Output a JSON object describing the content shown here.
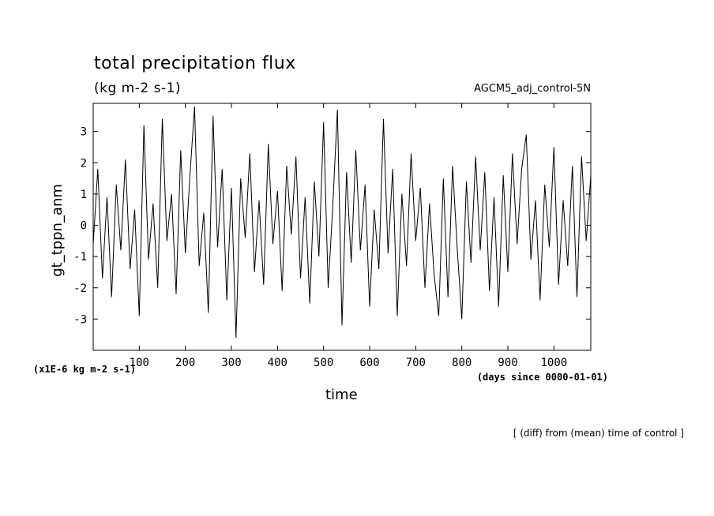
{
  "header": {
    "title": "total precipitation flux",
    "subtitle": "(kg m-2 s-1)",
    "run_label": "AGCM5_adj_control-5N"
  },
  "axes": {
    "scale_note": "(x1E-6 kg m-2 s-1)",
    "x_unit": "(days since 0000-01-01)",
    "x_label": "time",
    "y_label": "gt_tppn_anm"
  },
  "footer": {
    "note": "[ (diff) from (mean) time of control ]"
  },
  "chart_data": {
    "type": "line",
    "title": "total precipitation flux",
    "subtitle": "(kg m-2 s-1)",
    "xlabel": "time",
    "ylabel": "gt_tppn_anm",
    "x_unit": "days since 0000-01-01",
    "y_scale_note": "x1E-6 kg m-2 s-1",
    "xlim": [
      0,
      1080
    ],
    "ylim": [
      -4,
      3.9
    ],
    "x_ticks": [
      100,
      200,
      300,
      400,
      500,
      600,
      700,
      800,
      900,
      1000
    ],
    "y_ticks": [
      -3,
      -2,
      -1,
      0,
      1,
      2,
      3
    ],
    "line_color": "#000000",
    "grid": false,
    "series": [
      {
        "x": [
          0,
          10,
          20,
          30,
          40,
          50,
          60,
          70,
          80,
          90,
          100,
          110,
          120,
          130,
          140,
          150,
          160,
          170,
          180,
          190,
          200,
          210,
          220,
          230,
          240,
          250,
          260,
          270,
          280,
          290,
          300,
          310,
          320,
          330,
          340,
          350,
          360,
          370,
          380,
          390,
          400,
          410,
          420,
          430,
          440,
          450,
          460,
          470,
          480,
          490,
          500,
          510,
          520,
          530,
          540,
          550,
          560,
          570,
          580,
          590,
          600,
          610,
          620,
          630,
          640,
          650,
          660,
          670,
          680,
          690,
          700,
          710,
          720,
          730,
          740,
          750,
          760,
          770,
          780,
          790,
          800,
          810,
          820,
          830,
          840,
          850,
          860,
          870,
          880,
          890,
          900,
          910,
          920,
          930,
          940,
          950,
          960,
          970,
          980,
          990,
          1000,
          1010,
          1020,
          1030,
          1040,
          1050,
          1060,
          1070,
          1080
        ],
        "y": [
          -0.6,
          1.8,
          -1.7,
          0.9,
          -2.3,
          1.3,
          -0.8,
          2.1,
          -1.4,
          0.5,
          -2.9,
          3.2,
          -1.1,
          0.7,
          -2.0,
          3.4,
          -0.5,
          1.0,
          -2.2,
          2.4,
          -0.9,
          1.6,
          3.8,
          -1.3,
          0.4,
          -2.8,
          3.5,
          -0.7,
          1.8,
          -2.4,
          1.2,
          -3.6,
          1.5,
          -0.4,
          2.3,
          -1.5,
          0.8,
          -1.9,
          2.6,
          -0.6,
          1.1,
          -2.1,
          1.9,
          -0.3,
          2.2,
          -1.7,
          0.9,
          -2.5,
          1.4,
          -1.0,
          3.3,
          -2.0,
          0.6,
          3.7,
          -3.2,
          1.7,
          -1.2,
          2.4,
          -0.8,
          1.3,
          -2.6,
          0.5,
          -1.4,
          3.4,
          -0.9,
          1.8,
          -2.9,
          1.0,
          -1.3,
          2.3,
          -0.5,
          1.2,
          -2.0,
          0.7,
          -1.6,
          -2.9,
          1.5,
          -2.3,
          1.9,
          -0.7,
          -3.0,
          1.4,
          -1.2,
          2.2,
          -0.8,
          1.7,
          -2.1,
          0.9,
          -2.6,
          1.6,
          -1.5,
          2.3,
          -0.6,
          1.8,
          2.9,
          -1.1,
          0.8,
          -2.4,
          1.3,
          -0.7,
          2.5,
          -1.9,
          0.8,
          -1.3,
          1.9,
          -2.3,
          2.2,
          -0.5,
          1.6
        ]
      }
    ]
  }
}
